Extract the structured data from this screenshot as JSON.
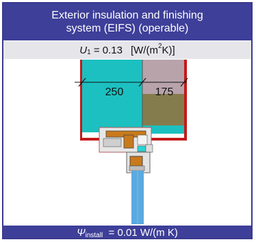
{
  "title": {
    "line1": "Exterior insulation and finishing",
    "line2": "system (EIFS) (operable)"
  },
  "u_value": {
    "symbol": "U",
    "subscript": "1",
    "equals": "= 0.13",
    "unit_open": "[W/(m",
    "unit_sup": "2",
    "unit_close": " K)]"
  },
  "dimensions": {
    "insulation_thickness": "250",
    "wall_thickness": "175"
  },
  "psi_value": {
    "symbol": "Ψ",
    "subscript": "install",
    "text": "= 0.01 W/(m K)"
  },
  "colors": {
    "header_bg": "#3e3f99",
    "insulation": "#1cc0c0",
    "wall": "#857c4d",
    "wall_top": "#b8a3ab",
    "plaster_red": "#c41919",
    "window_frame": "#c87a1c",
    "glass": "#5aa9e0"
  }
}
